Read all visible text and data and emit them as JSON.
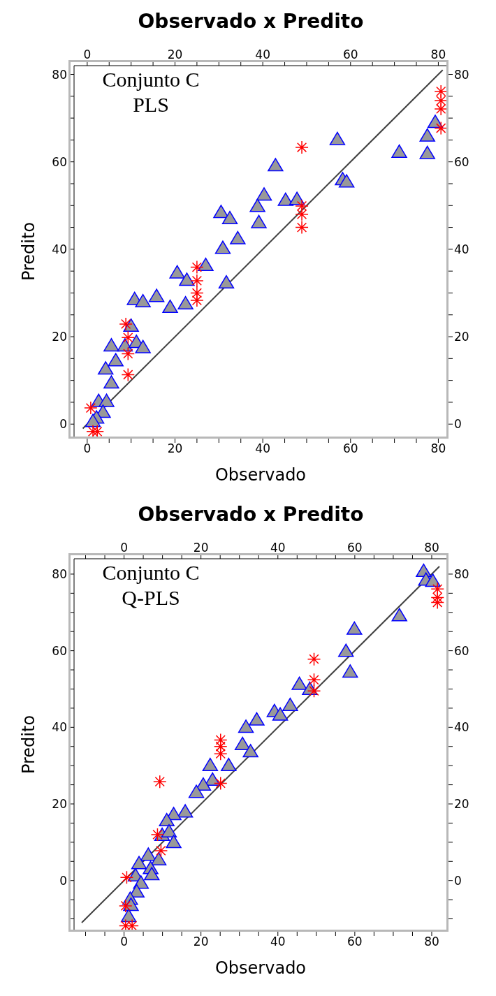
{
  "chart_data": [
    {
      "type": "scatter",
      "title": "Observado x Predito",
      "xlabel": "Observado",
      "ylabel": "Predito",
      "annotations": [
        "Conjunto C",
        "PLS"
      ],
      "xlim": [
        -3,
        82
      ],
      "xticks": [
        0,
        {
          "value": 5,
          "label": null
        },
        {
          "value": 10,
          "label": null
        },
        {
          "value": 15,
          "label": null
        },
        20,
        {
          "value": 25,
          "label": null
        },
        {
          "value": 30,
          "label": null
        },
        {
          "value": 35,
          "label": null
        },
        40,
        {
          "value": 45,
          "label": null
        },
        {
          "value": 50,
          "label": null
        },
        {
          "value": 55,
          "label": null
        },
        60,
        {
          "value": 65,
          "label": null
        },
        {
          "value": 70,
          "label": null
        },
        {
          "value": 75,
          "label": null
        },
        80
      ],
      "x2lim": [
        -3,
        82
      ],
      "x2ticks": [
        0,
        {
          "value": 5,
          "label": null
        },
        {
          "value": 10,
          "label": null
        },
        {
          "value": 15,
          "label": null
        },
        20,
        {
          "value": 25,
          "label": null
        },
        {
          "value": 30,
          "label": null
        },
        {
          "value": 35,
          "label": null
        },
        40,
        {
          "value": 45,
          "label": null
        },
        {
          "value": 50,
          "label": null
        },
        {
          "value": 55,
          "label": null
        },
        60,
        {
          "value": 65,
          "label": null
        },
        {
          "value": 70,
          "label": null
        },
        {
          "value": 75,
          "label": null
        },
        80
      ],
      "ylim": [
        -3,
        82
      ],
      "yticks": [
        0,
        {
          "value": 5,
          "label": null
        },
        {
          "value": 10,
          "label": null
        },
        {
          "value": 15,
          "label": null
        },
        20,
        {
          "value": 25,
          "label": null
        },
        {
          "value": 30,
          "label": null
        },
        {
          "value": 35,
          "label": null
        },
        40,
        {
          "value": 45,
          "label": null
        },
        {
          "value": 50,
          "label": null
        },
        {
          "value": 55,
          "label": null
        },
        60,
        {
          "value": 65,
          "label": null
        },
        {
          "value": 70,
          "label": null
        },
        {
          "value": 75,
          "label": null
        },
        80
      ],
      "y2lim": [
        -3,
        82
      ],
      "y2ticks": [
        0,
        {
          "value": 5,
          "label": null
        },
        {
          "value": 10,
          "label": null
        },
        {
          "value": 15,
          "label": null
        },
        20,
        {
          "value": 25,
          "label": null
        },
        {
          "value": 30,
          "label": null
        },
        {
          "value": 35,
          "label": null
        },
        40,
        {
          "value": 45,
          "label": null
        },
        {
          "value": 50,
          "label": null
        },
        {
          "value": 55,
          "label": null
        },
        60,
        {
          "value": 65,
          "label": null
        },
        {
          "value": 70,
          "label": null
        },
        {
          "value": 75,
          "label": null
        },
        80
      ],
      "series": [
        {
          "type": "line",
          "color": "#404040",
          "marker": "none",
          "x": [
            -1,
            81
          ],
          "values": [
            -1,
            81
          ]
        },
        {
          "type": "scatter",
          "color": "#999999",
          "marker": "triangle",
          "x": [
            42.9,
            40.3,
            38.8,
            39.1,
            30.5,
            32.5,
            34.3,
            30.9,
            27.0,
            31.7,
            20.5,
            22.7,
            10.8,
            12.7,
            15.8,
            18.9,
            22.4,
            10.0,
            5.5,
            8.6,
            11.2,
            12.7,
            6.5,
            4.2,
            5.5,
            2.6,
            4.4,
            3.6,
            2.1,
            1.3,
            45.2,
            47.8,
            57.0,
            58.2,
            59.1,
            71.1,
            77.5,
            77.5,
            79.3
          ],
          "values": [
            59.0,
            52.3,
            49.7,
            46.0,
            48.3,
            46.9,
            42.3,
            40.1,
            36.2,
            32.2,
            34.5,
            32.8,
            28.4,
            27.9,
            29.1,
            26.6,
            27.4,
            22.3,
            17.8,
            17.8,
            18.6,
            17.4,
            14.4,
            12.5,
            9.3,
            5.1,
            5.1,
            2.6,
            1.3,
            0.5,
            51.1,
            51.3,
            65.0,
            55.8,
            55.3,
            62.1,
            65.8,
            61.8,
            68.9
          ]
        },
        {
          "type": "scatter",
          "color": "#ff0000",
          "marker": "cross",
          "x": [
            48.9,
            48.9,
            48.9,
            48.9,
            80.6,
            80.6,
            80.6,
            80.6,
            25.0,
            25.0,
            25.0,
            25.0,
            8.8,
            9.3,
            9.3,
            9.3,
            0.8,
            1.3,
            2.3
          ],
          "values": [
            63.3,
            49.9,
            48.0,
            45.0,
            76.1,
            74.0,
            72.1,
            67.7,
            35.9,
            32.8,
            30.0,
            28.3,
            22.9,
            19.8,
            16.1,
            11.3,
            3.7,
            -1.7,
            -1.7
          ]
        }
      ]
    },
    {
      "type": "scatter",
      "title": "Observado x Predito",
      "xlabel": "Observado",
      "ylabel": "Predito",
      "annotations": [
        "Conjunto C",
        "Q-PLS"
      ],
      "xlim": [
        -13,
        84
      ],
      "xticks": [
        {
          "value": -10,
          "label": null
        },
        {
          "value": -5,
          "label": null
        },
        0,
        {
          "value": 5,
          "label": null
        },
        {
          "value": 10,
          "label": null
        },
        {
          "value": 15,
          "label": null
        },
        20,
        {
          "value": 25,
          "label": null
        },
        {
          "value": 30,
          "label": null
        },
        {
          "value": 35,
          "label": null
        },
        40,
        {
          "value": 45,
          "label": null
        },
        {
          "value": 50,
          "label": null
        },
        {
          "value": 55,
          "label": null
        },
        60,
        {
          "value": 65,
          "label": null
        },
        {
          "value": 70,
          "label": null
        },
        {
          "value": 75,
          "label": null
        },
        80
      ],
      "x2lim": [
        -13,
        84
      ],
      "x2ticks": [
        {
          "value": -10,
          "label": null
        },
        {
          "value": -5,
          "label": null
        },
        0,
        {
          "value": 5,
          "label": null
        },
        {
          "value": 10,
          "label": null
        },
        {
          "value": 15,
          "label": null
        },
        20,
        {
          "value": 25,
          "label": null
        },
        {
          "value": 30,
          "label": null
        },
        {
          "value": 35,
          "label": null
        },
        40,
        {
          "value": 45,
          "label": null
        },
        {
          "value": 50,
          "label": null
        },
        {
          "value": 55,
          "label": null
        },
        60,
        {
          "value": 65,
          "label": null
        },
        {
          "value": 70,
          "label": null
        },
        {
          "value": 75,
          "label": null
        },
        80
      ],
      "ylim": [
        -13,
        84
      ],
      "yticks": [
        {
          "value": -10,
          "label": null
        },
        {
          "value": -5,
          "label": null
        },
        0,
        {
          "value": 5,
          "label": null
        },
        {
          "value": 10,
          "label": null
        },
        {
          "value": 15,
          "label": null
        },
        20,
        {
          "value": 25,
          "label": null
        },
        {
          "value": 30,
          "label": null
        },
        {
          "value": 35,
          "label": null
        },
        40,
        {
          "value": 45,
          "label": null
        },
        {
          "value": 50,
          "label": null
        },
        {
          "value": 55,
          "label": null
        },
        60,
        {
          "value": 65,
          "label": null
        },
        {
          "value": 70,
          "label": null
        },
        {
          "value": 75,
          "label": null
        },
        80
      ],
      "y2lim": [
        -13,
        84
      ],
      "y2ticks": [
        {
          "value": -10,
          "label": null
        },
        {
          "value": -5,
          "label": null
        },
        0,
        {
          "value": 5,
          "label": null
        },
        {
          "value": 10,
          "label": null
        },
        {
          "value": 15,
          "label": null
        },
        20,
        {
          "value": 25,
          "label": null
        },
        {
          "value": 30,
          "label": null
        },
        {
          "value": 35,
          "label": null
        },
        40,
        {
          "value": 45,
          "label": null
        },
        {
          "value": 50,
          "label": null
        },
        {
          "value": 55,
          "label": null
        },
        60,
        {
          "value": 65,
          "label": null
        },
        {
          "value": 70,
          "label": null
        },
        {
          "value": 75,
          "label": null
        },
        80
      ],
      "series": [
        {
          "type": "line",
          "color": "#404040",
          "marker": "none",
          "x": [
            -11,
            82
          ],
          "values": [
            -11,
            82
          ]
        },
        {
          "type": "scatter",
          "color": "#999999",
          "marker": "triangle",
          "x": [
            39.1,
            40.6,
            34.5,
            31.7,
            30.8,
            32.9,
            22.4,
            27.2,
            23.0,
            20.6,
            18.8,
            15.9,
            12.9,
            11.1,
            9.9,
            11.7,
            12.9,
            6.3,
            9.0,
            3.9,
            6.9,
            7.2,
            3.0,
            4.4,
            3.3,
            1.6,
            1.8,
            1.2,
            43.2,
            45.6,
            48.3,
            59.9,
            57.7,
            58.8,
            71.6,
            77.9,
            78.5,
            80.3
          ],
          "values": [
            44.0,
            43.1,
            41.8,
            39.9,
            35.4,
            33.5,
            29.9,
            29.9,
            26.1,
            24.8,
            22.9,
            17.8,
            17.1,
            15.5,
            11.7,
            12.6,
            9.8,
            6.5,
            5.3,
            4.3,
            3.0,
            1.4,
            1.1,
            -0.8,
            -3.1,
            -5.0,
            -6.6,
            -9.5,
            45.6,
            51.1,
            49.8,
            65.5,
            59.7,
            54.3,
            69.0,
            80.6,
            78.3,
            78.0
          ]
        },
        {
          "type": "scatter",
          "color": "#ff0000",
          "marker": "cross",
          "x": [
            49.4,
            49.4,
            49.4,
            81.5,
            81.5,
            81.5,
            9.3,
            25.1,
            25.1,
            25.1,
            25.1,
            8.7,
            9.6,
            0.7,
            0.4,
            0.4,
            2.1
          ],
          "values": [
            57.8,
            52.4,
            49.5,
            76.1,
            73.9,
            72.6,
            25.8,
            36.7,
            35.0,
            33.1,
            25.4,
            12.0,
            7.8,
            0.8,
            -6.6,
            -11.8,
            -11.8
          ]
        }
      ]
    }
  ]
}
